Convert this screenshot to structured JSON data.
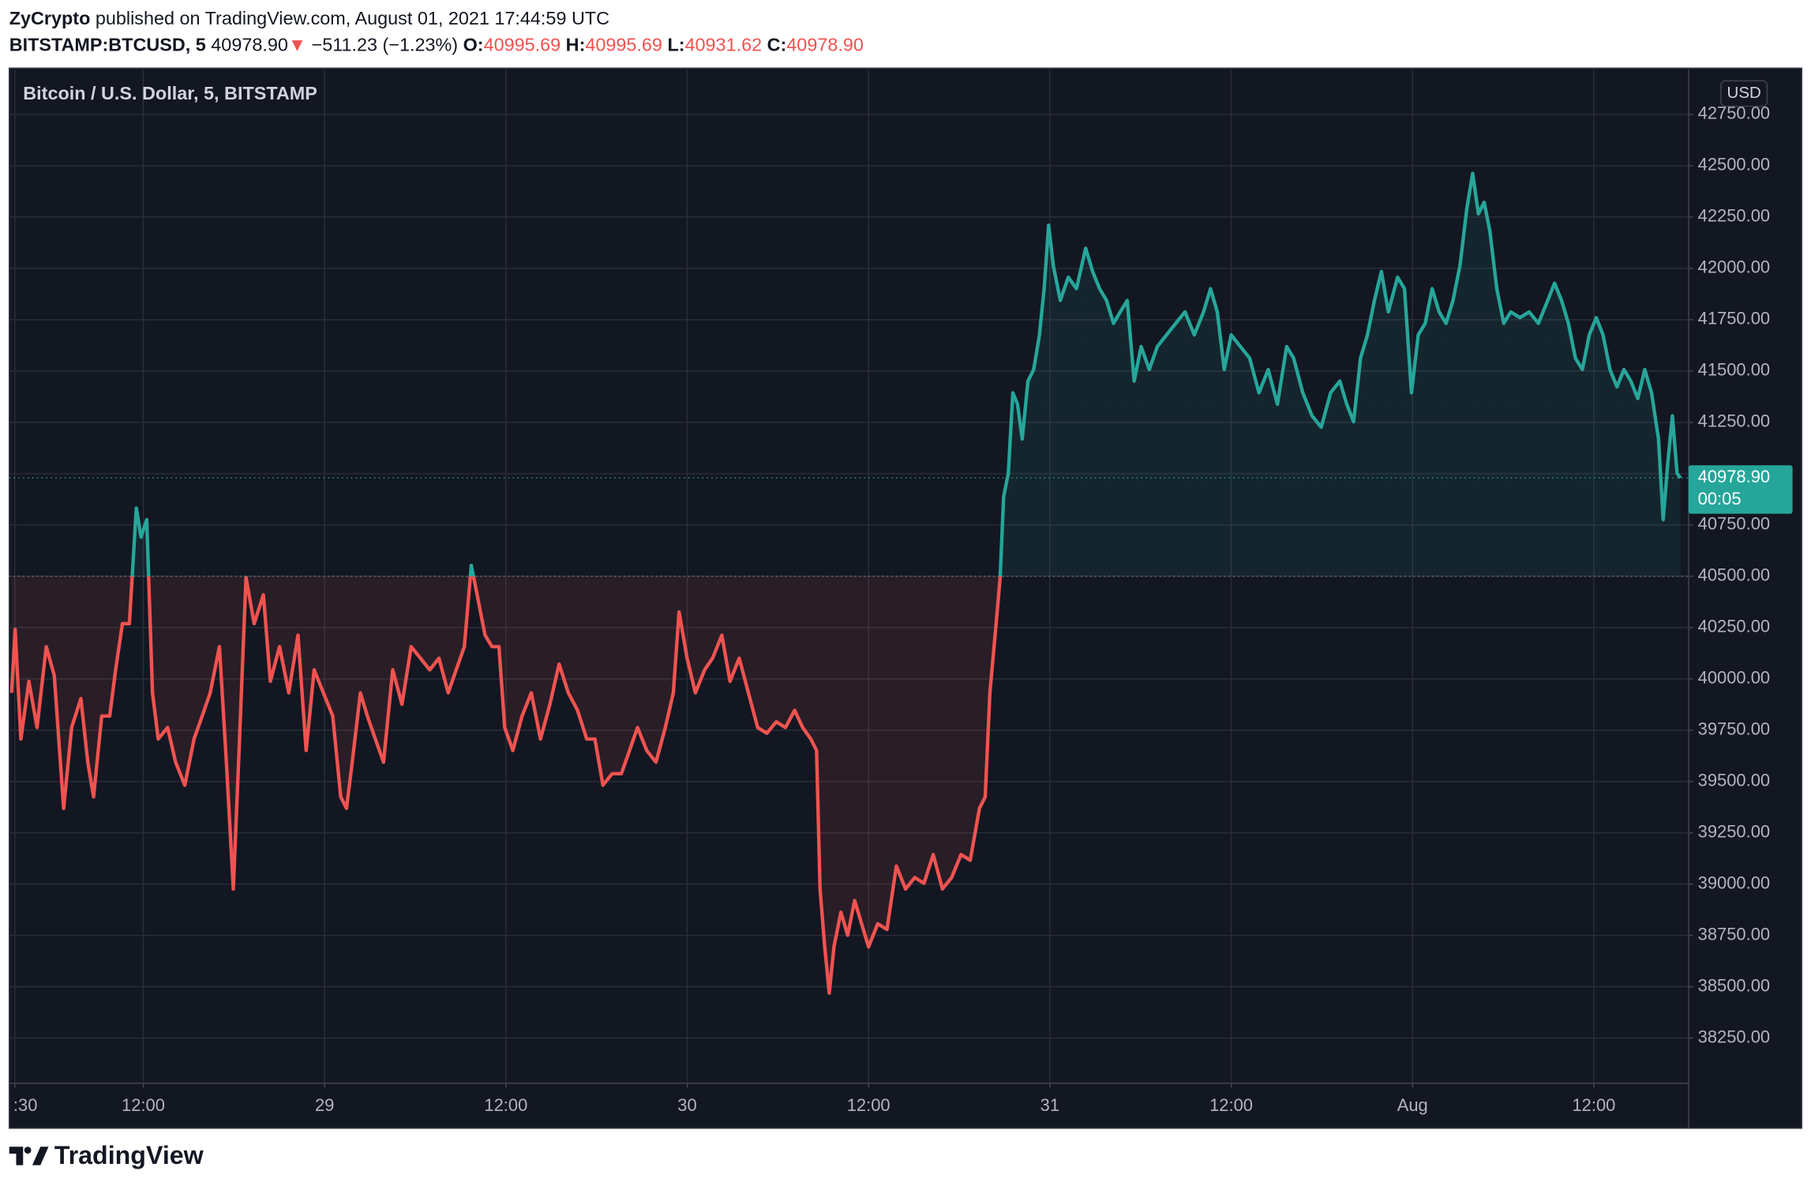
{
  "header": {
    "author": "ZyCrypto",
    "published": "published on TradingView.com, August 01, 2021 17:44:59 UTC",
    "symbol": "BITSTAMP:BTCUSD, 5",
    "last": "40978.90",
    "arrow": "▼",
    "change": "−511.23 (−1.23%)",
    "ohlc": [
      {
        "key": "O:",
        "value": "40995.69"
      },
      {
        "key": "H:",
        "value": "40995.69"
      },
      {
        "key": "L:",
        "value": "40931.62"
      },
      {
        "key": "C:",
        "value": "40978.90"
      }
    ]
  },
  "footer": "TradingView",
  "chart_data": {
    "type": "baseline",
    "currency": "USD",
    "price_label": "40978.90",
    "countdown": "00:05",
    "baseline": 40500,
    "up_color": "#26a69a",
    "down_color": "#ef5350",
    "grid": true,
    "xlim": [
      3.13,
      114.27
    ],
    "ylim": [
      38030,
      42970
    ],
    "xticks": [
      {
        "value": 3.5,
        "label": ":30"
      },
      {
        "value": 12,
        "label": "12:00"
      },
      {
        "value": 24,
        "label": "29"
      },
      {
        "value": 36,
        "label": "12:00"
      },
      {
        "value": 48,
        "label": "30"
      },
      {
        "value": 60,
        "label": "12:00"
      },
      {
        "value": 72,
        "label": "31"
      },
      {
        "value": 84,
        "label": "12:00"
      },
      {
        "value": 96,
        "label": "Aug"
      },
      {
        "value": 108,
        "label": "12:00"
      }
    ],
    "yticks": [
      {
        "value": 38250,
        "label": "38250.00"
      },
      {
        "value": 38500,
        "label": "38500.00"
      },
      {
        "value": 38750,
        "label": "38750.00"
      },
      {
        "value": 39000,
        "label": "39000.00"
      },
      {
        "value": 39250,
        "label": "39250.00"
      },
      {
        "value": 39500,
        "label": "39500.00"
      },
      {
        "value": 39750,
        "label": "39750.00"
      },
      {
        "value": 40000,
        "label": "40000.00"
      },
      {
        "value": 40250,
        "label": "40250.00"
      },
      {
        "value": 40500,
        "label": "40500.00"
      },
      {
        "value": 40750,
        "label": "40750.00"
      },
      {
        "value": 41000,
        "label": "41000.00"
      },
      {
        "value": 41250,
        "label": "41250.00"
      },
      {
        "value": 41500,
        "label": "41500.00"
      },
      {
        "value": 41750,
        "label": "41750.00"
      },
      {
        "value": 42000,
        "label": "42000.00"
      },
      {
        "value": 42250,
        "label": "42250.00"
      },
      {
        "value": 42500,
        "label": "42500.00"
      },
      {
        "value": 42750,
        "label": "42750.00"
      }
    ],
    "series": [
      {
        "name": "Bitcoin / U.S. Dollar, 5, BITSTAMP",
        "x": [
          3.29,
          3.52,
          3.9,
          4.43,
          4.97,
          5.58,
          6.11,
          6.73,
          7.26,
          7.87,
          8.33,
          8.71,
          9.25,
          9.78,
          10.17,
          10.62,
          11.08,
          11.54,
          11.85,
          12.23,
          12.61,
          12.99,
          13.61,
          14.14,
          14.75,
          15.36,
          15.9,
          16.43,
          17.04,
          17.5,
          17.96,
          18.34,
          18.8,
          19.34,
          19.95,
          20.41,
          21.02,
          21.63,
          22.24,
          22.78,
          23.31,
          23.92,
          24.54,
          25.07,
          25.45,
          25.83,
          26.37,
          26.83,
          27.36,
          27.9,
          28.51,
          29.12,
          29.73,
          30.34,
          30.96,
          31.57,
          32.18,
          32.71,
          33.25,
          33.71,
          34.17,
          34.62,
          35.08,
          35.54,
          35.92,
          36.46,
          37.07,
          37.68,
          38.29,
          38.91,
          39.52,
          40.13,
          40.74,
          41.35,
          41.89,
          42.42,
          43.03,
          43.64,
          44.18,
          44.71,
          45.32,
          45.93,
          46.55,
          47.08,
          47.46,
          47.99,
          48.54,
          49.15,
          49.68,
          50.29,
          50.83,
          51.44,
          52.05,
          52.66,
          53.27,
          53.89,
          54.5,
          55.11,
          55.64,
          56.18,
          56.56,
          56.79,
          57.1,
          57.4,
          57.71,
          58.17,
          58.62,
          59.08,
          59.54,
          60.0,
          60.61,
          61.22,
          61.84,
          62.45,
          63.06,
          63.67,
          64.28,
          64.89,
          65.5,
          66.12,
          66.73,
          67.34,
          67.72,
          68.03,
          68.41,
          68.71,
          68.94,
          69.25,
          69.55,
          69.86,
          70.17,
          70.55,
          70.93,
          71.31,
          71.62,
          71.92,
          72.23,
          72.69,
          73.22,
          73.76,
          74.37,
          74.83,
          75.29,
          75.75,
          76.21,
          76.66,
          77.12,
          77.58,
          78.04,
          78.58,
          79.11,
          79.72,
          80.33,
          80.94,
          81.56,
          82.17,
          82.63,
          83.08,
          83.54,
          84.0,
          84.61,
          85.22,
          85.84,
          86.45,
          87.06,
          87.67,
          88.13,
          88.74,
          89.35,
          89.96,
          90.58,
          91.19,
          91.65,
          92.1,
          92.56,
          93.02,
          93.48,
          93.94,
          94.4,
          95.01,
          95.47,
          95.93,
          96.38,
          96.84,
          97.3,
          97.76,
          98.22,
          98.68,
          99.14,
          99.6,
          99.98,
          100.36,
          100.74,
          101.12,
          101.58,
          102.04,
          102.5,
          103.11,
          103.72,
          104.33,
          104.95,
          105.4,
          105.86,
          106.32,
          106.78,
          107.24,
          107.7,
          108.16,
          108.61,
          109.07,
          109.53,
          109.99,
          110.45,
          110.91,
          111.37,
          111.82,
          112.28,
          112.59,
          112.9,
          113.2,
          113.51,
          113.74
        ],
        "values": [
          39932,
          40241,
          39707,
          39988,
          39763,
          40157,
          40016,
          39369,
          39763,
          39904,
          39594,
          39425,
          39819,
          39819,
          40044,
          40269,
          40269,
          40832,
          40691,
          40776,
          39932,
          39707,
          39763,
          39594,
          39482,
          39707,
          39819,
          39932,
          40157,
          39594,
          38976,
          39651,
          40494,
          40269,
          40410,
          39988,
          40157,
          39932,
          40213,
          39651,
          40044,
          39932,
          39819,
          39425,
          39369,
          39594,
          39932,
          39819,
          39707,
          39594,
          40044,
          39876,
          40157,
          40101,
          40044,
          40101,
          39932,
          40044,
          40157,
          40553,
          40382,
          40213,
          40157,
          40157,
          39763,
          39651,
          39819,
          39932,
          39707,
          39876,
          40072,
          39932,
          39847,
          39707,
          39707,
          39482,
          39538,
          39538,
          39651,
          39763,
          39651,
          39594,
          39763,
          39932,
          40326,
          40101,
          39932,
          40044,
          40101,
          40213,
          39988,
          40101,
          39932,
          39763,
          39735,
          39791,
          39763,
          39847,
          39763,
          39707,
          39651,
          38976,
          38694,
          38469,
          38694,
          38863,
          38751,
          38920,
          38807,
          38694,
          38807,
          38779,
          39088,
          38976,
          39032,
          39004,
          39144,
          38976,
          39032,
          39144,
          39116,
          39369,
          39425,
          39932,
          40241,
          40494,
          40888,
          41001,
          41394,
          41338,
          41169,
          41451,
          41507,
          41676,
          41901,
          42210,
          42013,
          41844,
          41957,
          41901,
          42098,
          41985,
          41901,
          41844,
          41732,
          41788,
          41844,
          41451,
          41619,
          41507,
          41619,
          41676,
          41732,
          41788,
          41676,
          41788,
          41901,
          41788,
          41507,
          41676,
          41619,
          41563,
          41394,
          41507,
          41338,
          41619,
          41563,
          41394,
          41282,
          41226,
          41394,
          41451,
          41338,
          41253,
          41563,
          41676,
          41844,
          41985,
          41788,
          41957,
          41901,
          41394,
          41676,
          41732,
          41901,
          41788,
          41732,
          41844,
          42013,
          42294,
          42463,
          42266,
          42322,
          42182,
          41901,
          41732,
          41788,
          41760,
          41788,
          41732,
          41844,
          41928,
          41844,
          41732,
          41563,
          41507,
          41676,
          41760,
          41676,
          41507,
          41423,
          41507,
          41451,
          41366,
          41507,
          41394,
          41169,
          40776,
          41057,
          41282,
          41001,
          40978.9
        ]
      }
    ]
  }
}
